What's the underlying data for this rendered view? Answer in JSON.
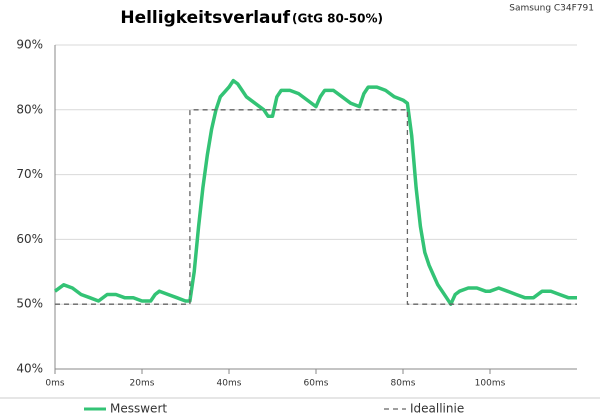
{
  "chart_data": {
    "type": "line",
    "title": "Helligkeitsverlauf",
    "subtitle": "(GtG 80-50%)",
    "note": "Samsung C34F791",
    "xlim": [
      0,
      120
    ],
    "ylim": [
      40,
      90
    ],
    "xticks": [
      {
        "value": 0,
        "label": "0ms"
      },
      {
        "value": 20,
        "label": "20ms"
      },
      {
        "value": 40,
        "label": "40ms"
      },
      {
        "value": 60,
        "label": "60ms"
      },
      {
        "value": 80,
        "label": "80ms"
      },
      {
        "value": 100,
        "label": "100ms"
      }
    ],
    "yticks": [
      {
        "value": 40,
        "label": "40%"
      },
      {
        "value": 50,
        "label": "50%"
      },
      {
        "value": 60,
        "label": "60%"
      },
      {
        "value": 70,
        "label": "70%"
      },
      {
        "value": 80,
        "label": "80%"
      },
      {
        "value": 90,
        "label": "90%"
      }
    ],
    "grid": true,
    "legend": "bottom",
    "series": [
      {
        "name": "Messwert",
        "color": "#33c375",
        "style": "solid",
        "x": [
          0,
          2,
          4,
          6,
          8,
          10,
          12,
          14,
          16,
          18,
          20,
          22,
          23,
          24,
          26,
          28,
          30,
          31,
          32,
          33,
          34,
          35,
          36,
          37,
          38,
          40,
          41,
          42,
          43,
          44,
          46,
          48,
          49,
          50,
          51,
          52,
          54,
          56,
          58,
          60,
          61,
          62,
          64,
          66,
          68,
          70,
          71,
          72,
          74,
          76,
          78,
          80,
          81,
          82,
          83,
          84,
          85,
          86,
          87,
          88,
          89,
          90,
          91,
          92,
          93,
          95,
          97,
          99,
          100,
          102,
          104,
          106,
          108,
          110,
          112,
          114,
          116,
          118,
          120
        ],
        "values": [
          52,
          53,
          52.5,
          51.5,
          51,
          50.5,
          51.5,
          51.5,
          51,
          51,
          50.5,
          50.5,
          51.5,
          52,
          51.5,
          51,
          50.5,
          50.5,
          55,
          62,
          68,
          73,
          77,
          80,
          82,
          83.5,
          84.5,
          84,
          83,
          82,
          81,
          80,
          79,
          79,
          82,
          83,
          83,
          82.5,
          81.5,
          80.5,
          82,
          83,
          83,
          82,
          81,
          80.5,
          82.5,
          83.5,
          83.5,
          83,
          82,
          81.5,
          81,
          76,
          68,
          62,
          58,
          56,
          54.5,
          53,
          52,
          51,
          50,
          51.5,
          52,
          52.5,
          52.5,
          52,
          52,
          52.5,
          52,
          51.5,
          51,
          51,
          52,
          52,
          51.5,
          51,
          51
        ]
      },
      {
        "name": "Ideallinie",
        "color": "#666666",
        "style": "dashed",
        "x": [
          0,
          31,
          31,
          81,
          81,
          120
        ],
        "values": [
          50,
          50,
          80,
          80,
          50,
          50
        ]
      }
    ]
  }
}
